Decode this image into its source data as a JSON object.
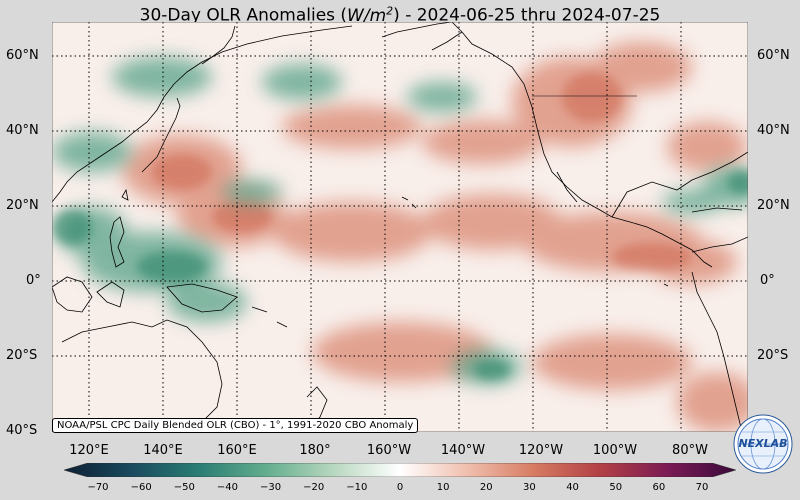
{
  "title": {
    "prefix": "30-Day OLR Anomalies (",
    "unit_base": "W/m",
    "unit_exp": "2",
    "suffix": ") - 2024-06-25 thru 2024-07-25"
  },
  "map": {
    "projection": "equirectangular",
    "lon_range": [
      100,
      288
    ],
    "lat_range": [
      -40,
      68
    ],
    "grid": true,
    "lat_labels": [
      "60°N",
      "40°N",
      "20°N",
      "0°",
      "20°S",
      "40°S"
    ],
    "lon_labels": [
      "120°E",
      "140°E",
      "160°E",
      "180°",
      "160°W",
      "140°W",
      "120°W",
      "100°W",
      "80°W"
    ],
    "colors": {
      "ocean_neutral": "#f8eeea",
      "positive": "#d9826a",
      "negative": "#4e9e83",
      "coast": "#000000",
      "grid": "#000000"
    }
  },
  "credit": "NOAA/PSL CPC Daily Blended OLR (CBO) - 1°, 1991-2020 CBO Anomaly",
  "colorbar": {
    "min": -70,
    "max": 70,
    "ticks": [
      "−70",
      "−60",
      "−50",
      "−40",
      "−30",
      "−20",
      "−10",
      "0",
      "10",
      "20",
      "30",
      "40",
      "50",
      "60",
      "70"
    ],
    "stops": [
      "#0d1f33",
      "#1a4a5e",
      "#2a7d74",
      "#63ad8e",
      "#b7d7bf",
      "#ffffff",
      "#f0bfae",
      "#d67b62",
      "#b13f45",
      "#7a1a55",
      "#3b0a3a"
    ]
  },
  "logo": {
    "text": "NEXLAB",
    "icon": "nexlab-globe-logo"
  }
}
